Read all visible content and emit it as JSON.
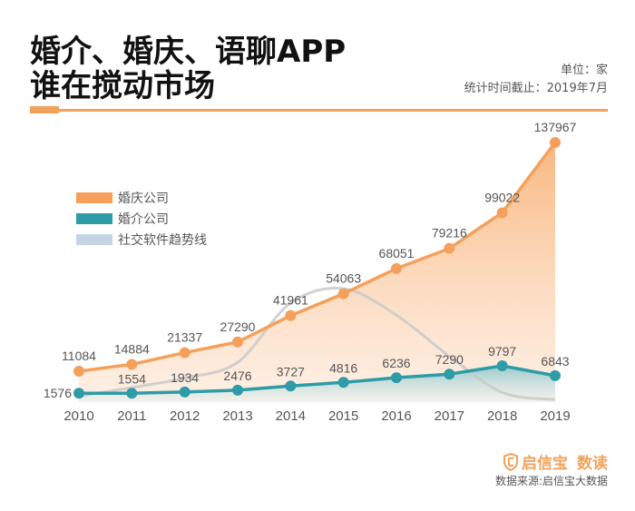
{
  "header": {
    "title_line1": "婚介、婚庆、语聊APP",
    "title_line2": "谁在搅动市场",
    "unit": "单位：家",
    "as_of": "统计时间截止：2019年7月"
  },
  "legend": [
    {
      "label": "婚庆公司",
      "color": "#f5a05a"
    },
    {
      "label": "婚介公司",
      "color": "#2e9ca6"
    },
    {
      "label": "社交软件趋势线",
      "color": "#c5d4e2"
    }
  ],
  "footer": {
    "brand_name": "启信宝",
    "brand_sub": "数读",
    "source": "数据来源:启信宝大数据",
    "brand_icon": "shield-logo-icon"
  },
  "chart_data": {
    "type": "line",
    "title": "婚介、婚庆、语聊APP 谁在搅动市场",
    "xlabel": "",
    "ylabel": "单位：家",
    "categories": [
      "2010",
      "2011",
      "2012",
      "2013",
      "2014",
      "2015",
      "2016",
      "2017",
      "2018",
      "2019"
    ],
    "series": [
      {
        "name": "婚庆公司",
        "color": "#f5a05a",
        "area": true,
        "values": [
          11084,
          14884,
          21337,
          27290,
          41961,
          54063,
          68051,
          79216,
          99022,
          137967
        ]
      },
      {
        "name": "婚介公司",
        "color": "#2e9ca6",
        "area": true,
        "values": [
          1576,
          1554,
          1934,
          2476,
          3727,
          4816,
          6236,
          7290,
          9797,
          6843
        ]
      },
      {
        "name": "社交软件趋势线",
        "color": "#c5d4e2",
        "trend_only": true,
        "values": [
          0.05,
          0.12,
          0.2,
          0.33,
          0.82,
          0.94,
          0.72,
          0.38,
          0.08,
          0.02
        ]
      }
    ],
    "grid": false,
    "legend_position": "top-left"
  }
}
